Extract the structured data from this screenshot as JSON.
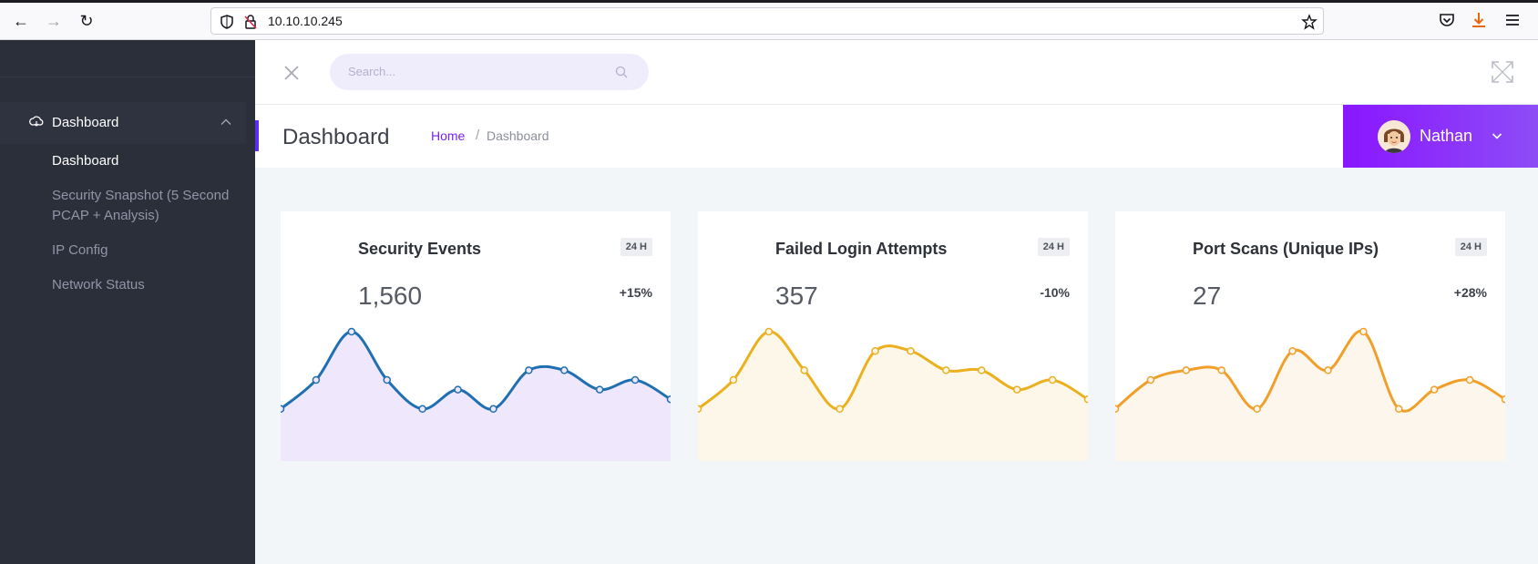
{
  "browser": {
    "url": "10.10.10.245"
  },
  "sidebar": {
    "group_label": "Dashboard",
    "items": [
      {
        "label": "Dashboard",
        "active": true
      },
      {
        "label": "Security Snapshot (5 Second PCAP + Analysis)",
        "active": false
      },
      {
        "label": "IP Config",
        "active": false
      },
      {
        "label": "Network Status",
        "active": false
      }
    ]
  },
  "header": {
    "search_placeholder": "Search...",
    "page_title": "Dashboard",
    "breadcrumb_home": "Home",
    "breadcrumb_sep": "/",
    "breadcrumb_current": "Dashboard",
    "user_name": "Nathan"
  },
  "colors": {
    "accent": "#8a16ff",
    "sidebar_bg": "#2b2f3a",
    "series_blue": "#1f6fb2",
    "series_yellow": "#eab01e",
    "series_orange": "#f0a02a"
  },
  "cards": [
    {
      "title": "Security Events",
      "badge": "24 H",
      "value": "1,560",
      "change": "+15%"
    },
    {
      "title": "Failed Login Attempts",
      "badge": "24 H",
      "value": "357",
      "change": "-10%"
    },
    {
      "title": "Port Scans (Unique IPs)",
      "badge": "24 H",
      "value": "27",
      "change": "+28%"
    }
  ],
  "chart_data": [
    {
      "type": "area",
      "series": [
        {
          "values": [
            2,
            5,
            10,
            5,
            2,
            4,
            2,
            6,
            6,
            4,
            5,
            3
          ]
        }
      ],
      "color": "#1f6fb2",
      "fill": "#efe8fd"
    },
    {
      "type": "area",
      "series": [
        {
          "values": [
            2,
            5,
            10,
            6,
            2,
            8,
            8,
            6,
            6,
            4,
            5,
            3
          ]
        }
      ],
      "color": "#eab01e",
      "fill": "#fdf7e9"
    },
    {
      "type": "area",
      "series": [
        {
          "values": [
            2,
            5,
            6,
            6,
            2,
            8,
            6,
            10,
            2,
            4,
            5,
            3
          ]
        }
      ],
      "color": "#f0a02a",
      "fill": "#fdf6ec"
    }
  ]
}
